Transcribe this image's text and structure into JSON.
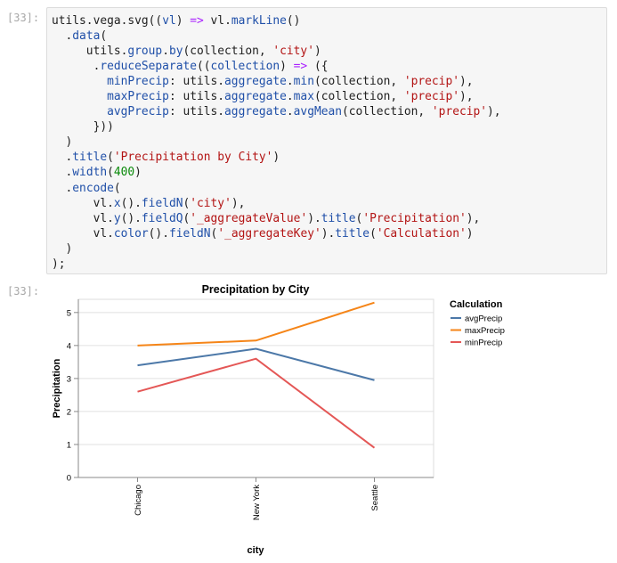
{
  "cell": {
    "input_prompt": "[33]:",
    "output_prompt": "[33]:",
    "code_lines": [
      [
        {
          "t": "utils.vega.svg((",
          "c": ""
        },
        {
          "t": "vl",
          "c": "var"
        },
        {
          "t": ") ",
          "c": ""
        },
        {
          "t": "=>",
          "c": "op"
        },
        {
          "t": " vl.",
          "c": ""
        },
        {
          "t": "markLine",
          "c": "prop"
        },
        {
          "t": "()",
          "c": ""
        }
      ],
      [
        {
          "t": "  .",
          "c": ""
        },
        {
          "t": "data",
          "c": "prop"
        },
        {
          "t": "(",
          "c": ""
        }
      ],
      [
        {
          "t": "     utils.",
          "c": ""
        },
        {
          "t": "group",
          "c": "prop"
        },
        {
          "t": ".",
          "c": ""
        },
        {
          "t": "by",
          "c": "prop"
        },
        {
          "t": "(collection, ",
          "c": ""
        },
        {
          "t": "'city'",
          "c": "str"
        },
        {
          "t": ")",
          "c": ""
        }
      ],
      [
        {
          "t": "      .",
          "c": ""
        },
        {
          "t": "reduceSeparate",
          "c": "prop"
        },
        {
          "t": "((",
          "c": ""
        },
        {
          "t": "collection",
          "c": "var"
        },
        {
          "t": ") ",
          "c": ""
        },
        {
          "t": "=>",
          "c": "op"
        },
        {
          "t": " ({",
          "c": ""
        }
      ],
      [
        {
          "t": "        ",
          "c": ""
        },
        {
          "t": "minPrecip",
          "c": "prop"
        },
        {
          "t": ": utils.",
          "c": ""
        },
        {
          "t": "aggregate",
          "c": "prop"
        },
        {
          "t": ".",
          "c": ""
        },
        {
          "t": "min",
          "c": "prop"
        },
        {
          "t": "(collection, ",
          "c": ""
        },
        {
          "t": "'precip'",
          "c": "str"
        },
        {
          "t": "),",
          "c": ""
        }
      ],
      [
        {
          "t": "        ",
          "c": ""
        },
        {
          "t": "maxPrecip",
          "c": "prop"
        },
        {
          "t": ": utils.",
          "c": ""
        },
        {
          "t": "aggregate",
          "c": "prop"
        },
        {
          "t": ".",
          "c": ""
        },
        {
          "t": "max",
          "c": "prop"
        },
        {
          "t": "(collection, ",
          "c": ""
        },
        {
          "t": "'precip'",
          "c": "str"
        },
        {
          "t": "),",
          "c": ""
        }
      ],
      [
        {
          "t": "        ",
          "c": ""
        },
        {
          "t": "avgPrecip",
          "c": "prop"
        },
        {
          "t": ": utils.",
          "c": ""
        },
        {
          "t": "aggregate",
          "c": "prop"
        },
        {
          "t": ".",
          "c": ""
        },
        {
          "t": "avgMean",
          "c": "prop"
        },
        {
          "t": "(collection, ",
          "c": ""
        },
        {
          "t": "'precip'",
          "c": "str"
        },
        {
          "t": "),",
          "c": ""
        }
      ],
      [
        {
          "t": "      }))",
          "c": ""
        }
      ],
      [
        {
          "t": "  )",
          "c": ""
        }
      ],
      [
        {
          "t": "  .",
          "c": ""
        },
        {
          "t": "title",
          "c": "prop"
        },
        {
          "t": "(",
          "c": ""
        },
        {
          "t": "'Precipitation by City'",
          "c": "str"
        },
        {
          "t": ")",
          "c": ""
        }
      ],
      [
        {
          "t": "  .",
          "c": ""
        },
        {
          "t": "width",
          "c": "prop"
        },
        {
          "t": "(",
          "c": ""
        },
        {
          "t": "400",
          "c": "num"
        },
        {
          "t": ")",
          "c": ""
        }
      ],
      [
        {
          "t": "  .",
          "c": ""
        },
        {
          "t": "encode",
          "c": "prop"
        },
        {
          "t": "(",
          "c": ""
        }
      ],
      [
        {
          "t": "      vl.",
          "c": ""
        },
        {
          "t": "x",
          "c": "prop"
        },
        {
          "t": "().",
          "c": ""
        },
        {
          "t": "fieldN",
          "c": "prop"
        },
        {
          "t": "(",
          "c": ""
        },
        {
          "t": "'city'",
          "c": "str"
        },
        {
          "t": "),",
          "c": ""
        }
      ],
      [
        {
          "t": "      vl.",
          "c": ""
        },
        {
          "t": "y",
          "c": "prop"
        },
        {
          "t": "().",
          "c": ""
        },
        {
          "t": "fieldQ",
          "c": "prop"
        },
        {
          "t": "(",
          "c": ""
        },
        {
          "t": "'_aggregateValue'",
          "c": "str"
        },
        {
          "t": ").",
          "c": ""
        },
        {
          "t": "title",
          "c": "prop"
        },
        {
          "t": "(",
          "c": ""
        },
        {
          "t": "'Precipitation'",
          "c": "str"
        },
        {
          "t": "),",
          "c": ""
        }
      ],
      [
        {
          "t": "      vl.",
          "c": ""
        },
        {
          "t": "color",
          "c": "prop"
        },
        {
          "t": "().",
          "c": ""
        },
        {
          "t": "fieldN",
          "c": "prop"
        },
        {
          "t": "(",
          "c": ""
        },
        {
          "t": "'_aggregateKey'",
          "c": "str"
        },
        {
          "t": ").",
          "c": ""
        },
        {
          "t": "title",
          "c": "prop"
        },
        {
          "t": "(",
          "c": ""
        },
        {
          "t": "'Calculation'",
          "c": "str"
        },
        {
          "t": ")",
          "c": ""
        }
      ],
      [
        {
          "t": "  )",
          "c": ""
        }
      ],
      [
        {
          "t": ");",
          "c": ""
        }
      ]
    ]
  },
  "chart_data": {
    "type": "line",
    "title": "Precipitation by City",
    "xlabel": "city",
    "ylabel": "Precipitation",
    "categories": [
      "Chicago",
      "New York",
      "Seattle"
    ],
    "ylim": [
      0,
      5.4
    ],
    "yticks": [
      "0",
      "1",
      "2",
      "3",
      "4",
      "5"
    ],
    "grid": true,
    "legend_title": "Calculation",
    "legend_position": "right",
    "series": [
      {
        "name": "avgPrecip",
        "color": "#4c78a8",
        "values": [
          3.4,
          3.9,
          2.95
        ]
      },
      {
        "name": "maxPrecip",
        "color": "#f58518",
        "values": [
          4.0,
          4.15,
          5.3
        ]
      },
      {
        "name": "minPrecip",
        "color": "#e45756",
        "values": [
          2.6,
          3.6,
          0.9
        ]
      }
    ]
  }
}
